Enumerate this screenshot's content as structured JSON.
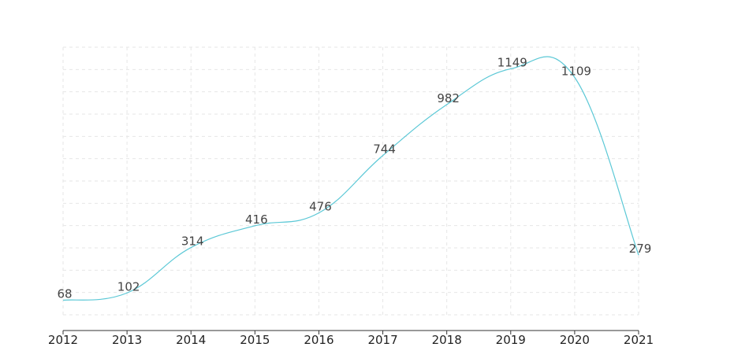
{
  "chart_data": {
    "type": "line",
    "smooth": true,
    "x": [
      "2012",
      "2013",
      "2014",
      "2015",
      "2016",
      "2017",
      "2018",
      "2019",
      "2020",
      "2021"
    ],
    "series": [
      {
        "values": [
          68,
          102,
          314,
          416,
          476,
          744,
          982,
          1149,
          1109,
          279
        ]
      }
    ],
    "title": "",
    "xlabel": "",
    "ylabel": "",
    "ylim": [
      0,
      1250
    ],
    "grid": true,
    "data_labels": true,
    "line_color": "#5bc8d6",
    "axis_color": "#333333",
    "grid_color": "#e6e6e6"
  }
}
